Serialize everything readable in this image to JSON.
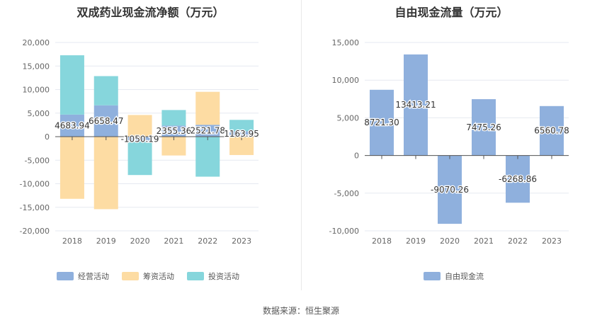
{
  "chart_data": [
    {
      "type": "bar",
      "stacked": true,
      "title": "双成药业现金流净额（万元）",
      "categories": [
        "2018",
        "2019",
        "2020",
        "2021",
        "2022",
        "2023"
      ],
      "ylim": [
        -20000,
        20000
      ],
      "yticks": [
        20000,
        15000,
        10000,
        5000,
        0,
        -5000,
        -10000,
        -15000,
        -20000
      ],
      "ytick_labels": [
        "20,000",
        "15,000",
        "10,000",
        "5,000",
        "0",
        "-5,000",
        "-10,000",
        "-15,000",
        "-20,000"
      ],
      "series": [
        {
          "name": "经营活动",
          "values": [
            4683.94,
            6658.47,
            -1050.19,
            2355.36,
            2521.78,
            1163.95
          ],
          "color": "#8fb0dd"
        },
        {
          "name": "筹资活动",
          "values": [
            -13200,
            -15400,
            4600,
            -4000,
            7000,
            -3900
          ],
          "color": "#fddca3"
        },
        {
          "name": "投资活动",
          "values": [
            12600,
            6200,
            -7100,
            3300,
            -8500,
            2400
          ],
          "color": "#86d6dc"
        }
      ],
      "data_labels": [
        "4683.94",
        "6658.47",
        "-1050.19",
        "2355.36",
        "2521.78",
        "1163.95"
      ],
      "legend_position": "bottom",
      "grid": true
    },
    {
      "type": "bar",
      "title": "自由现金流量（万元）",
      "categories": [
        "2018",
        "2019",
        "2020",
        "2021",
        "2022",
        "2023"
      ],
      "ylim": [
        -10000,
        15000
      ],
      "yticks": [
        15000,
        10000,
        5000,
        0,
        -5000,
        -10000
      ],
      "ytick_labels": [
        "15,000",
        "10,000",
        "5,000",
        "0",
        "-5,000",
        "-10,000"
      ],
      "series": [
        {
          "name": "自由现金流",
          "values": [
            8721.3,
            13413.21,
            -9070.26,
            7475.26,
            -6268.86,
            6560.78
          ],
          "color": "#8fb0dd"
        }
      ],
      "data_labels": [
        "8721.30",
        "13413.21",
        "-9070.26",
        "7475.26",
        "-6268.86",
        "6560.78"
      ],
      "legend_position": "bottom",
      "grid": true
    }
  ],
  "footer": {
    "source": "数据来源：恒生聚源"
  }
}
